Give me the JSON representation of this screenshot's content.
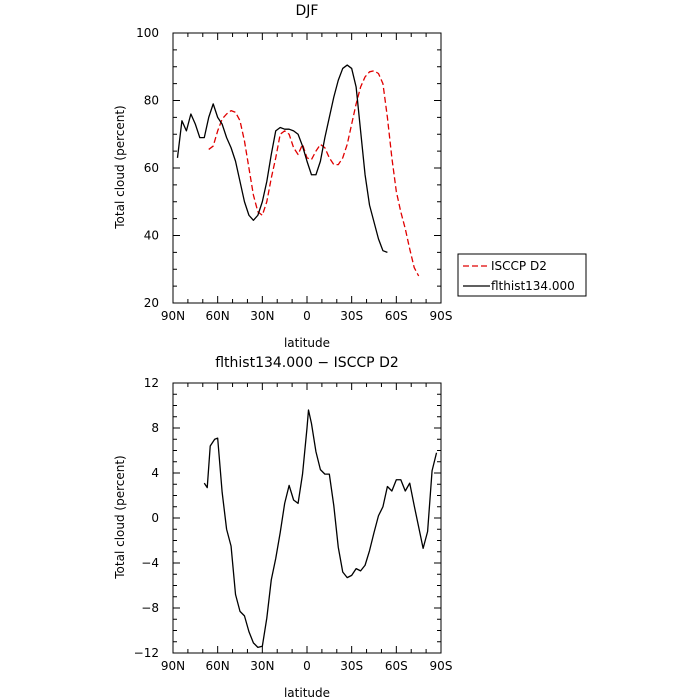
{
  "chart_data": [
    {
      "type": "line",
      "title": "DJF",
      "xlabel": "latitude",
      "ylabel": "Total cloud (percent)",
      "xlim": [
        90,
        -90
      ],
      "ylim": [
        20,
        100
      ],
      "xticks": [
        {
          "value": 90,
          "label": "90N"
        },
        {
          "value": 60,
          "label": "60N"
        },
        {
          "value": 30,
          "label": "30N"
        },
        {
          "value": 0,
          "label": "0"
        },
        {
          "value": -30,
          "label": "30S"
        },
        {
          "value": -60,
          "label": "60S"
        },
        {
          "value": -90,
          "label": "90S"
        }
      ],
      "yticks": [
        20,
        40,
        60,
        80,
        100
      ],
      "legend_position": "right-bottom-outside",
      "series": [
        {
          "name": "ISCCP D2",
          "color": "#e00000",
          "style": "dashed",
          "points": [
            [
              66,
              65.5
            ],
            [
              63,
              66.5
            ],
            [
              60,
              71
            ],
            [
              57,
              74.5
            ],
            [
              54,
              76
            ],
            [
              51,
              77
            ],
            [
              48,
              76.5
            ],
            [
              45,
              74
            ],
            [
              42,
              68
            ],
            [
              39,
              60
            ],
            [
              36,
              52
            ],
            [
              33,
              47
            ],
            [
              30,
              46
            ],
            [
              27,
              50
            ],
            [
              24,
              57
            ],
            [
              21,
              63
            ],
            [
              18,
              70
            ],
            [
              15,
              71
            ],
            [
              12,
              70
            ],
            [
              9,
              66
            ],
            [
              6,
              64
            ],
            [
              3,
              67
            ],
            [
              0,
              63
            ],
            [
              -3,
              62.5
            ],
            [
              -6,
              65
            ],
            [
              -9,
              67
            ],
            [
              -12,
              66
            ],
            [
              -15,
              63
            ],
            [
              -18,
              61
            ],
            [
              -21,
              61
            ],
            [
              -24,
              63
            ],
            [
              -27,
              67
            ],
            [
              -30,
              73
            ],
            [
              -33,
              79
            ],
            [
              -36,
              84
            ],
            [
              -39,
              87
            ],
            [
              -42,
              88.5
            ],
            [
              -45,
              88.8
            ],
            [
              -48,
              88
            ],
            [
              -51,
              85
            ],
            [
              -54,
              75
            ],
            [
              -57,
              63
            ],
            [
              -60,
              53
            ],
            [
              -63,
              47
            ],
            [
              -66,
              42
            ],
            [
              -69,
              36
            ],
            [
              -72,
              30.5
            ],
            [
              -75,
              28
            ]
          ]
        },
        {
          "name": "flthist134.000",
          "color": "#000000",
          "style": "solid",
          "points": [
            [
              87,
              63
            ],
            [
              84,
              74
            ],
            [
              81,
              71
            ],
            [
              78,
              76
            ],
            [
              75,
              73
            ],
            [
              72,
              69
            ],
            [
              69,
              69
            ],
            [
              66,
              75
            ],
            [
              63,
              79
            ],
            [
              60,
              75
            ],
            [
              57,
              73
            ],
            [
              54,
              69
            ],
            [
              51,
              66
            ],
            [
              48,
              62
            ],
            [
              45,
              56
            ],
            [
              42,
              50
            ],
            [
              39,
              46
            ],
            [
              36,
              44.5
            ],
            [
              33,
              46
            ],
            [
              30,
              50
            ],
            [
              27,
              56
            ],
            [
              24,
              64
            ],
            [
              21,
              71
            ],
            [
              18,
              72
            ],
            [
              15,
              71.5
            ],
            [
              12,
              71.5
            ],
            [
              9,
              71
            ],
            [
              6,
              70
            ],
            [
              3,
              66.5
            ],
            [
              0,
              62
            ],
            [
              -3,
              58
            ],
            [
              -6,
              58
            ],
            [
              -9,
              62
            ],
            [
              -12,
              69
            ],
            [
              -15,
              75
            ],
            [
              -18,
              81
            ],
            [
              -21,
              86
            ],
            [
              -24,
              89.5
            ],
            [
              -27,
              90.5
            ],
            [
              -30,
              89.5
            ],
            [
              -33,
              84
            ],
            [
              -36,
              71
            ],
            [
              -39,
              58
            ],
            [
              -42,
              49
            ],
            [
              -45,
              44
            ],
            [
              -48,
              39
            ],
            [
              -51,
              35.5
            ],
            [
              -54,
              35
            ]
          ]
        }
      ]
    },
    {
      "type": "line",
      "title": "flthist134.000 − ISCCP D2",
      "xlabel": "latitude",
      "ylabel": "Total cloud (percent)",
      "xlim": [
        90,
        -90
      ],
      "ylim": [
        -12,
        12
      ],
      "xticks": [
        {
          "value": 90,
          "label": "90N"
        },
        {
          "value": 60,
          "label": "60N"
        },
        {
          "value": 30,
          "label": "30N"
        },
        {
          "value": 0,
          "label": "0"
        },
        {
          "value": -30,
          "label": "30S"
        },
        {
          "value": -60,
          "label": "60S"
        },
        {
          "value": -90,
          "label": "90S"
        }
      ],
      "yticks": [
        -12,
        -8,
        -4,
        0,
        4,
        8,
        12
      ],
      "series": [
        {
          "name": "",
          "color": "#000000",
          "style": "solid",
          "points": [
            [
              69,
              3.1
            ],
            [
              67,
              2.7
            ],
            [
              65,
              6.4
            ],
            [
              62,
              7
            ],
            [
              60,
              7.1
            ],
            [
              57,
              2.3
            ],
            [
              54,
              -1
            ],
            [
              51,
              -2.5
            ],
            [
              48,
              -6.8
            ],
            [
              45,
              -8.3
            ],
            [
              42,
              -8.7
            ],
            [
              39,
              -10.1
            ],
            [
              36,
              -11.1
            ],
            [
              33,
              -11.5
            ],
            [
              30,
              -11.4
            ],
            [
              27,
              -8.9
            ],
            [
              24,
              -5.5
            ],
            [
              21,
              -3.6
            ],
            [
              18,
              -1.3
            ],
            [
              15,
              1.3
            ],
            [
              12,
              2.9
            ],
            [
              9,
              1.6
            ],
            [
              6,
              1.3
            ],
            [
              3,
              3.9
            ],
            [
              0,
              8
            ],
            [
              -1,
              9.6
            ],
            [
              -3,
              8.4
            ],
            [
              -6,
              5.9
            ],
            [
              -9,
              4.3
            ],
            [
              -12,
              3.9
            ],
            [
              -15,
              3.9
            ],
            [
              -18,
              1.1
            ],
            [
              -21,
              -2.6
            ],
            [
              -24,
              -4.8
            ],
            [
              -27,
              -5.3
            ],
            [
              -30,
              -5.1
            ],
            [
              -33,
              -4.5
            ],
            [
              -36,
              -4.7
            ],
            [
              -39,
              -4.2
            ],
            [
              -42,
              -2.9
            ],
            [
              -45,
              -1.3
            ],
            [
              -48,
              0.2
            ],
            [
              -51,
              1
            ],
            [
              -54,
              2.8
            ],
            [
              -57,
              2.4
            ],
            [
              -60,
              3.4
            ],
            [
              -63,
              3.4
            ],
            [
              -66,
              2.4
            ],
            [
              -69,
              3.1
            ],
            [
              -72,
              1.1
            ],
            [
              -75,
              -0.8
            ],
            [
              -78,
              -2.7
            ],
            [
              -81,
              -1.2
            ],
            [
              -84,
              4.2
            ],
            [
              -87,
              5.8
            ]
          ]
        }
      ]
    }
  ]
}
